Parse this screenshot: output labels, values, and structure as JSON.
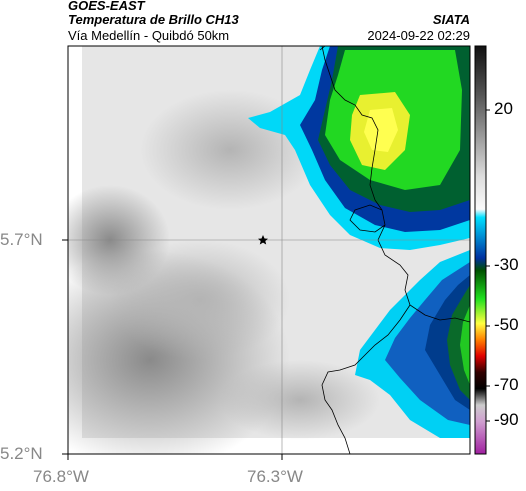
{
  "header": {
    "product": "GOES-EAST",
    "band": "Temperatura de Brillo CH13",
    "region": "Vía Medellín - Quibdó 50km",
    "org": "SIATA",
    "datetime": "2024-09-22 02:29"
  },
  "map": {
    "lat_ticks": [
      "5.7°N",
      "5.2°N"
    ],
    "lon_ticks": [
      "76.8°W",
      "76.3°W"
    ],
    "marker": "star-marker"
  },
  "colorbar": {
    "ticks": [
      "20",
      "-30",
      "-50",
      "-70",
      "-90"
    ],
    "colors": [
      "#ffffff",
      "#00c8f0",
      "#00408c",
      "#00ff00",
      "#ffff00",
      "#ff0000",
      "#000000",
      "#c040c0"
    ]
  }
}
